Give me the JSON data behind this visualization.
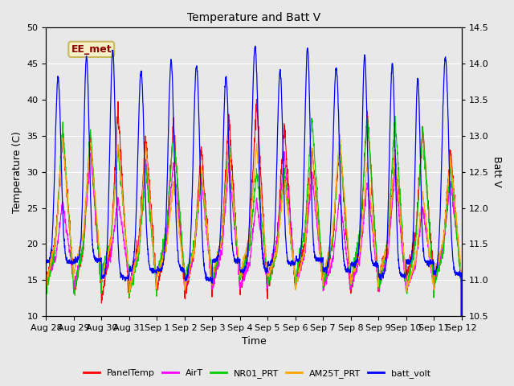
{
  "title": "Temperature and Batt V",
  "xlabel": "Time",
  "ylabel_left": "Temperature (C)",
  "ylabel_right": "Batt V",
  "ylim_left": [
    10,
    50
  ],
  "ylim_right": [
    10.5,
    14.5
  ],
  "background_color": "#e8e8e8",
  "plot_bg_color": "#e8e8e8",
  "annotation_text": "EE_met",
  "annotation_bg": "#f5f0c8",
  "annotation_border": "#c8b860",
  "annotation_text_color": "#8b0000",
  "grid_color": "#ffffff",
  "legend_entries": [
    "PanelTemp",
    "AirT",
    "NR01_PRT",
    "AM25T_PRT",
    "batt_volt"
  ],
  "line_colors": [
    "#ff0000",
    "#ff00ff",
    "#00cc00",
    "#ffa500",
    "#0000ff"
  ],
  "x_tick_labels": [
    "Aug 28",
    "Aug 29",
    "Aug 30",
    "Aug 31",
    "Sep 1",
    "Sep 2",
    "Sep 3",
    "Sep 4",
    "Sep 5",
    "Sep 6",
    "Sep 7",
    "Sep 8",
    "Sep 9",
    "Sep 10",
    "Sep 11",
    "Sep 12"
  ]
}
